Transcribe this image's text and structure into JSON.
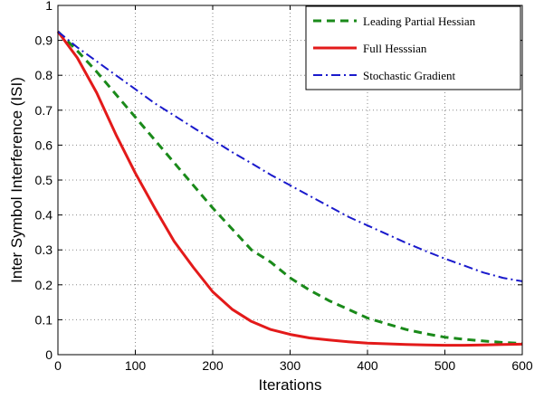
{
  "chart_data": {
    "type": "line",
    "title": "",
    "xlabel": "Iterations",
    "ylabel": "Inter Symbol Interference (ISI)",
    "xlim": [
      0,
      600
    ],
    "ylim": [
      0,
      1
    ],
    "xticks": [
      0,
      100,
      200,
      300,
      400,
      500,
      600
    ],
    "yticks": [
      0,
      0.1,
      0.2,
      0.3,
      0.4,
      0.5,
      0.6,
      0.7,
      0.8,
      0.9,
      1
    ],
    "xtick_labels": [
      "0",
      "100",
      "200",
      "300",
      "400",
      "500",
      "600"
    ],
    "ytick_labels": [
      "0",
      "0.1",
      "0.2",
      "0.3",
      "0.4",
      "0.5",
      "0.6",
      "0.7",
      "0.8",
      "0.9",
      "1"
    ],
    "grid": true,
    "legend_position": "top-right",
    "series": [
      {
        "name": "Leading Partial Hessian",
        "color": "#1a8a1a",
        "line_style": "dashed",
        "x": [
          0,
          25,
          50,
          75,
          100,
          125,
          150,
          175,
          200,
          225,
          250,
          275,
          300,
          325,
          350,
          375,
          400,
          425,
          450,
          475,
          500,
          525,
          550,
          575,
          600
        ],
        "y": [
          0.925,
          0.87,
          0.81,
          0.745,
          0.68,
          0.615,
          0.55,
          0.485,
          0.42,
          0.36,
          0.3,
          0.265,
          0.22,
          0.185,
          0.155,
          0.13,
          0.105,
          0.088,
          0.072,
          0.06,
          0.05,
          0.044,
          0.039,
          0.035,
          0.032
        ]
      },
      {
        "name": "Full Hesssian",
        "color": "#e31a1a",
        "line_style": "solid",
        "x": [
          0,
          25,
          50,
          75,
          100,
          125,
          150,
          175,
          200,
          225,
          250,
          275,
          300,
          325,
          350,
          375,
          400,
          425,
          450,
          475,
          500,
          525,
          550,
          575,
          600
        ],
        "y": [
          0.925,
          0.85,
          0.75,
          0.63,
          0.52,
          0.42,
          0.325,
          0.25,
          0.18,
          0.13,
          0.095,
          0.072,
          0.058,
          0.048,
          0.042,
          0.037,
          0.033,
          0.031,
          0.029,
          0.028,
          0.027,
          0.027,
          0.028,
          0.029,
          0.03
        ]
      },
      {
        "name": "Stochastic Gradient",
        "color": "#1a1acc",
        "line_style": "dashdot",
        "x": [
          0,
          25,
          50,
          75,
          100,
          125,
          150,
          175,
          200,
          225,
          250,
          275,
          300,
          325,
          350,
          375,
          400,
          425,
          450,
          475,
          500,
          525,
          550,
          575,
          600
        ],
        "y": [
          0.925,
          0.88,
          0.84,
          0.8,
          0.76,
          0.72,
          0.685,
          0.65,
          0.615,
          0.58,
          0.548,
          0.515,
          0.485,
          0.455,
          0.425,
          0.395,
          0.37,
          0.345,
          0.32,
          0.297,
          0.275,
          0.255,
          0.235,
          0.22,
          0.21
        ]
      }
    ]
  }
}
